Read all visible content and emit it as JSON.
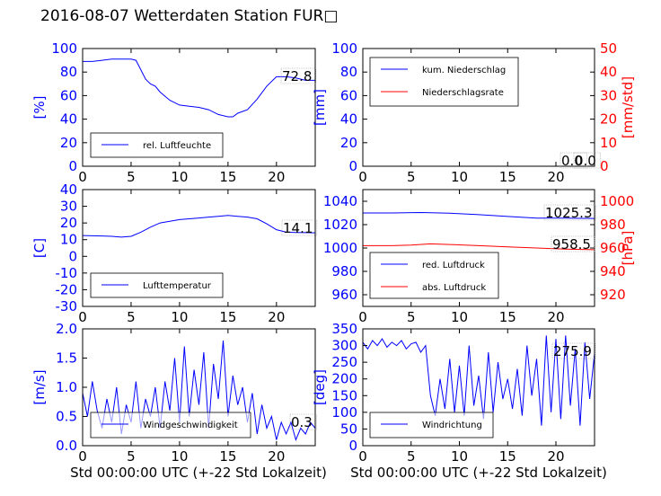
{
  "figure": {
    "title": "2016-08-07 Wetterdaten Station FUR□",
    "xlabel_bottom": "Std 00:00:00 UTC (+-22 Std Lokalzeit)"
  },
  "chart_data": [
    {
      "id": "humidity",
      "type": "line",
      "xlim": [
        0,
        24
      ],
      "ylim": [
        0,
        100
      ],
      "ylabel": "[%]",
      "xticks": [
        0,
        5,
        10,
        15,
        20
      ],
      "yticks": [
        0,
        20,
        40,
        60,
        80,
        100
      ],
      "value_label": "72.8",
      "legend": {
        "placement": "lower-left",
        "entries": [
          {
            "name": "rel. Luftfeuchte",
            "color": "#0000ff"
          }
        ]
      },
      "series": [
        {
          "name": "rel. Luftfeuchte",
          "color": "#0000ff",
          "x": [
            0,
            1,
            2,
            3,
            4,
            5,
            5.5,
            6,
            6.5,
            7,
            7.5,
            8,
            9,
            10,
            11,
            12,
            13,
            14,
            15,
            15.5,
            16,
            17,
            18,
            19,
            20,
            21,
            22,
            23,
            24
          ],
          "y": [
            89,
            89,
            90,
            91,
            91,
            91,
            90,
            82,
            74,
            70,
            68,
            63,
            56,
            52,
            51,
            50,
            48,
            44,
            42,
            42,
            45,
            48,
            57,
            68,
            76,
            76,
            75,
            73,
            73
          ]
        }
      ]
    },
    {
      "id": "precipitation",
      "type": "line",
      "xlim": [
        0,
        24
      ],
      "ylim": [
        0,
        100
      ],
      "ylabel": "[mm]",
      "y2lim": [
        0,
        50
      ],
      "y2label": "[mm/std]",
      "xticks": [
        0,
        5,
        10,
        15,
        20
      ],
      "yticks": [
        0,
        20,
        40,
        60,
        80,
        100
      ],
      "y2ticks": [
        0,
        10,
        20,
        30,
        40,
        50
      ],
      "value_labels": [
        "0.0",
        "0.0"
      ],
      "legend": {
        "placement": "upper-left",
        "entries": [
          {
            "name": "kum. Niederschlag",
            "color": "#0000ff"
          },
          {
            "name": "Niederschlagsrate",
            "color": "#ff0000"
          }
        ]
      },
      "series": [
        {
          "name": "kum. Niederschlag",
          "color": "#0000ff",
          "axis": "left",
          "x": [
            0,
            24
          ],
          "y": [
            0,
            0
          ]
        },
        {
          "name": "Niederschlagsrate",
          "color": "#ff0000",
          "axis": "right",
          "x": [
            0,
            24
          ],
          "y": [
            0,
            0
          ]
        }
      ]
    },
    {
      "id": "temperature",
      "type": "line",
      "xlim": [
        0,
        24
      ],
      "ylim": [
        -30,
        40
      ],
      "ylabel": "[C]",
      "xticks": [
        0,
        5,
        10,
        15,
        20
      ],
      "yticks": [
        -30,
        -20,
        -10,
        0,
        10,
        20,
        30,
        40
      ],
      "value_label": "14.1",
      "legend": {
        "placement": "lower-left",
        "entries": [
          {
            "name": "Lufttemperatur",
            "color": "#0000ff"
          }
        ]
      },
      "series": [
        {
          "name": "Lufttemperatur",
          "color": "#0000ff",
          "x": [
            0,
            1,
            2,
            3,
            4,
            5,
            6,
            7,
            8,
            9,
            10,
            11,
            12,
            13,
            14,
            15,
            16,
            17,
            18,
            19,
            20,
            21,
            22,
            23,
            24
          ],
          "y": [
            12.5,
            12.3,
            12.2,
            12.0,
            11.5,
            12.0,
            14.5,
            17.5,
            20.0,
            21.0,
            22.0,
            22.5,
            23.0,
            23.5,
            24.0,
            24.5,
            24.0,
            23.5,
            22.5,
            19.5,
            16.0,
            14.5,
            14.3,
            14.2,
            14.1
          ]
        }
      ]
    },
    {
      "id": "pressure",
      "type": "line",
      "xlim": [
        0,
        24
      ],
      "ylim": [
        950,
        1050
      ],
      "ylabel": "",
      "y2lim": [
        910,
        1010
      ],
      "y2label": "[hPa]",
      "xticks": [
        0,
        5,
        10,
        15,
        20
      ],
      "yticks": [
        960,
        980,
        1000,
        1020,
        1040
      ],
      "y2ticks": [
        920,
        940,
        960,
        980,
        1000
      ],
      "value_labels": [
        "1025.3",
        "958.5"
      ],
      "legend": {
        "placement": "lower-left",
        "entries": [
          {
            "name": "red. Luftdruck",
            "color": "#0000ff"
          },
          {
            "name": "abs. Luftdruck",
            "color": "#ff0000"
          }
        ]
      },
      "series": [
        {
          "name": "red. Luftdruck",
          "color": "#0000ff",
          "axis": "left",
          "x": [
            0,
            3,
            6,
            9,
            12,
            15,
            18,
            21,
            24
          ],
          "y": [
            1030.0,
            1030.0,
            1030.4,
            1029.8,
            1028.5,
            1027.0,
            1025.5,
            1025.5,
            1025.3
          ]
        },
        {
          "name": "abs. Luftdruck",
          "color": "#ff0000",
          "axis": "right",
          "x": [
            0,
            3,
            5,
            7,
            9,
            12,
            15,
            18,
            21,
            24
          ],
          "y": [
            962.0,
            962.0,
            962.5,
            963.5,
            963.0,
            962.0,
            961.0,
            960.0,
            959.0,
            958.5
          ]
        }
      ]
    },
    {
      "id": "wind-speed",
      "type": "line",
      "xlim": [
        0,
        24
      ],
      "ylim": [
        0,
        2
      ],
      "ylabel": "[m/s]",
      "xticks": [
        0,
        5,
        10,
        15,
        20
      ],
      "yticks": [
        0.0,
        0.5,
        1.0,
        1.5,
        2.0
      ],
      "value_label": "0.3",
      "legend": {
        "placement": "lower-left",
        "entries": [
          {
            "name": "Windgeschwindigkeit",
            "color": "#0000ff"
          }
        ]
      },
      "series": [
        {
          "name": "Windgeschwindigkeit",
          "color": "#0000ff",
          "x": [
            0,
            0.5,
            1,
            1.5,
            2,
            2.5,
            3,
            3.5,
            4,
            4.5,
            5,
            5.5,
            6,
            6.5,
            7,
            7.5,
            8,
            8.5,
            9,
            9.5,
            10,
            10.5,
            11,
            11.5,
            12,
            12.5,
            13,
            13.5,
            14,
            14.5,
            15,
            15.5,
            16,
            16.5,
            17,
            17.5,
            18,
            18.5,
            19,
            19.5,
            20,
            20.5,
            21,
            21.5,
            22,
            22.5,
            23,
            23.5,
            24
          ],
          "y": [
            0.9,
            0.5,
            1.1,
            0.6,
            0.3,
            0.8,
            0.4,
            1.0,
            0.2,
            0.7,
            0.4,
            1.1,
            0.3,
            0.8,
            0.5,
            1.0,
            0.3,
            1.1,
            0.6,
            1.5,
            0.4,
            1.7,
            0.5,
            1.3,
            0.7,
            1.6,
            0.3,
            1.4,
            0.8,
            1.8,
            0.5,
            1.2,
            0.7,
            1.0,
            0.4,
            0.9,
            0.2,
            0.7,
            0.3,
            0.5,
            0.1,
            0.4,
            0.2,
            0.4,
            0.1,
            0.3,
            0.2,
            0.4,
            0.3
          ]
        }
      ]
    },
    {
      "id": "wind-direction",
      "type": "line",
      "xlim": [
        0,
        24
      ],
      "ylim": [
        0,
        350
      ],
      "ylabel": "[deg]",
      "xticks": [
        0,
        5,
        10,
        15,
        20
      ],
      "yticks": [
        0,
        50,
        100,
        150,
        200,
        250,
        300,
        350
      ],
      "value_label": "275.9",
      "legend": {
        "placement": "lower-left",
        "entries": [
          {
            "name": "Windrichtung",
            "color": "#0000ff"
          }
        ]
      },
      "series": [
        {
          "name": "Windrichtung",
          "color": "#0000ff",
          "x": [
            0,
            0.5,
            1,
            1.5,
            2,
            2.5,
            3,
            3.5,
            4,
            4.5,
            5,
            5.5,
            6,
            6.5,
            7,
            7.5,
            8,
            8.5,
            9,
            9.5,
            10,
            10.5,
            11,
            11.5,
            12,
            12.5,
            13,
            13.5,
            14,
            14.5,
            15,
            15.5,
            16,
            16.5,
            17,
            17.5,
            18,
            18.5,
            19,
            19.5,
            20,
            20.5,
            21,
            21.5,
            22,
            22.5,
            23,
            23.5,
            24
          ],
          "y": [
            310,
            290,
            315,
            300,
            320,
            295,
            310,
            300,
            315,
            290,
            305,
            310,
            280,
            300,
            150,
            90,
            200,
            110,
            260,
            100,
            240,
            90,
            300,
            120,
            210,
            80,
            280,
            100,
            250,
            140,
            200,
            110,
            230,
            90,
            300,
            150,
            260,
            60,
            330,
            100,
            320,
            80,
            330,
            120,
            290,
            60,
            310,
            140,
            276
          ]
        }
      ]
    }
  ]
}
